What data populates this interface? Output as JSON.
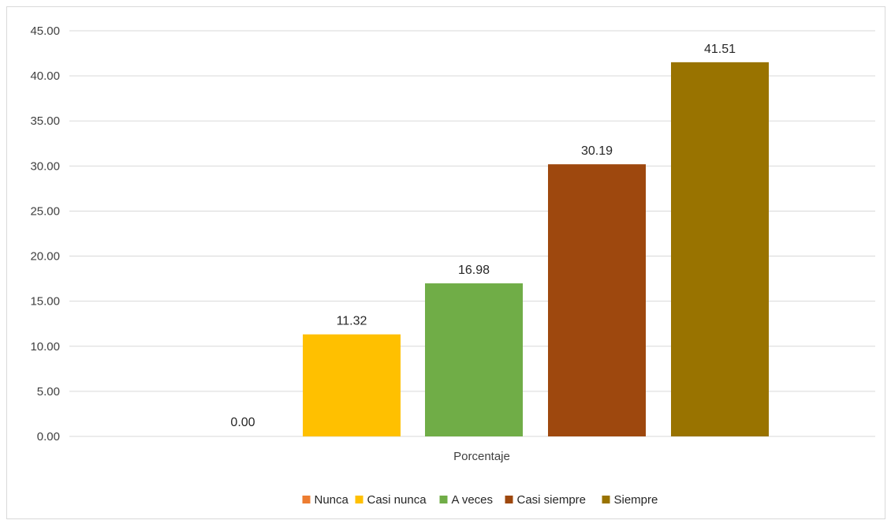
{
  "chart_data": {
    "type": "bar",
    "categories": [
      "Porcentaje"
    ],
    "series": [
      {
        "name": "Nunca",
        "values": [
          0.0
        ],
        "color": "#ED7D31"
      },
      {
        "name": "Casi nunca",
        "values": [
          11.32
        ],
        "color": "#FFC000"
      },
      {
        "name": "A veces",
        "values": [
          16.98
        ],
        "color": "#70AD47"
      },
      {
        "name": "Casi siempre",
        "values": [
          30.19
        ],
        "color": "#9E480E"
      },
      {
        "name": "Siempre",
        "values": [
          41.51
        ],
        "color": "#997300"
      }
    ],
    "ylim": [
      0,
      45
    ],
    "yticks": [
      "0.00",
      "5.00",
      "10.00",
      "15.00",
      "20.00",
      "25.00",
      "30.00",
      "35.00",
      "40.00",
      "45.00"
    ],
    "grid": true,
    "legend_position": "bottom",
    "data_labels": [
      "0.00",
      "11.32",
      "16.98",
      "30.19",
      "41.51"
    ]
  }
}
